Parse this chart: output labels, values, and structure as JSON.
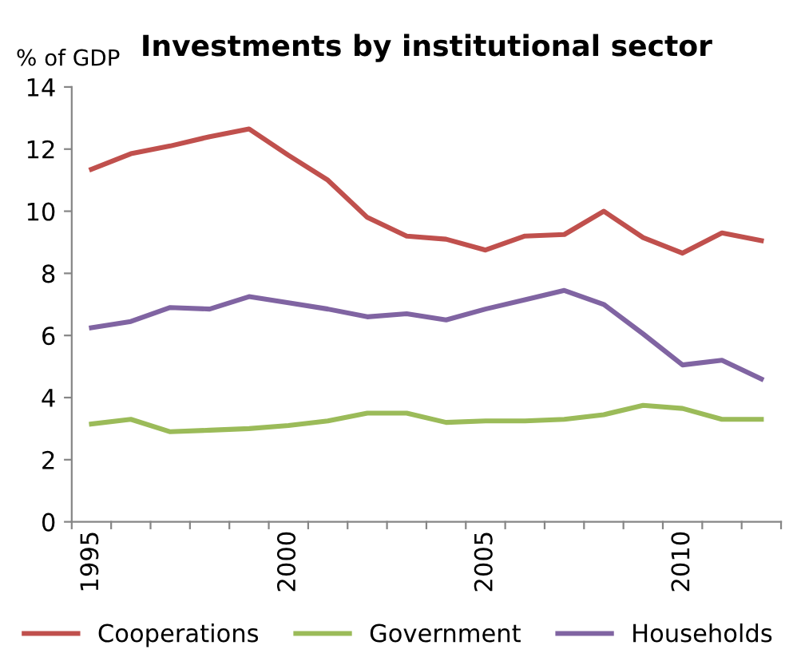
{
  "chart_data": {
    "type": "line",
    "title": "Investments by institutional sector",
    "ylabel": "% of GDP",
    "categories": [
      "1995",
      null,
      null,
      null,
      null,
      "2000",
      null,
      null,
      null,
      null,
      "2005",
      null,
      null,
      null,
      null,
      "2010",
      null,
      null
    ],
    "series": [
      {
        "name": "Cooperations",
        "color": "#c0504d",
        "values": [
          11.35,
          11.85,
          12.1,
          12.4,
          12.65,
          11.8,
          11.0,
          9.8,
          9.2,
          9.1,
          8.75,
          9.2,
          9.25,
          10.0,
          9.15,
          8.65,
          9.3,
          9.05
        ]
      },
      {
        "name": "Government",
        "color": "#9bbb59",
        "values": [
          3.15,
          3.3,
          2.9,
          2.95,
          3.0,
          3.1,
          3.25,
          3.5,
          3.5,
          3.2,
          3.25,
          3.25,
          3.3,
          3.45,
          3.75,
          3.65,
          3.3,
          3.3
        ]
      },
      {
        "name": "Households",
        "color": "#8064a2",
        "values": [
          6.25,
          6.45,
          6.9,
          6.85,
          7.25,
          7.05,
          6.85,
          6.6,
          6.7,
          6.5,
          6.85,
          7.15,
          7.45,
          7.0,
          6.05,
          5.05,
          5.2,
          4.6
        ]
      }
    ],
    "ylim": [
      0,
      14
    ],
    "yticks": [
      0,
      2,
      4,
      6,
      8,
      10,
      12,
      14
    ],
    "grid": false,
    "legend": "bottom",
    "marker": "none",
    "line_style": "solid"
  }
}
